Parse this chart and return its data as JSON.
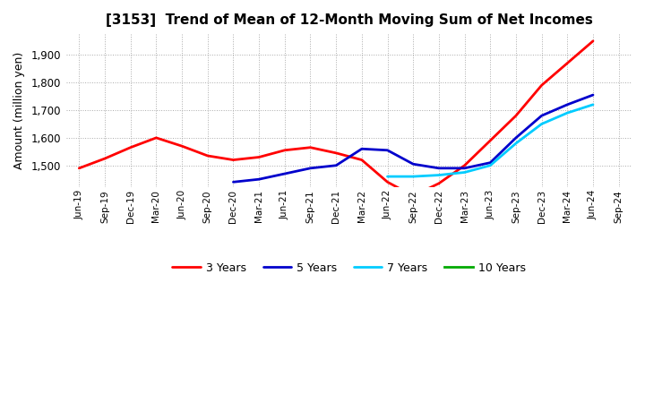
{
  "title": "[3153]  Trend of Mean of 12-Month Moving Sum of Net Incomes",
  "ylabel": "Amount (million yen)",
  "background_color": "#ffffff",
  "grid_color": "#aaaaaa",
  "x_labels": [
    "Jun-19",
    "Sep-19",
    "Dec-19",
    "Mar-20",
    "Jun-20",
    "Sep-20",
    "Dec-20",
    "Mar-21",
    "Jun-21",
    "Sep-21",
    "Dec-21",
    "Mar-22",
    "Jun-22",
    "Sep-22",
    "Dec-22",
    "Mar-23",
    "Jun-23",
    "Sep-23",
    "Dec-23",
    "Mar-24",
    "Jun-24",
    "Sep-24"
  ],
  "ylim": [
    1420,
    1975
  ],
  "yticks": [
    1500,
    1600,
    1700,
    1800,
    1900
  ],
  "series": {
    "3 Years": {
      "color": "#ff0000",
      "linewidth": 2.0,
      "values": [
        1490,
        1525,
        1565,
        1600,
        1570,
        1535,
        1520,
        1530,
        1555,
        1565,
        1545,
        1520,
        1440,
        1390,
        1435,
        1500,
        1590,
        1680,
        1790,
        1870,
        1950,
        null
      ]
    },
    "5 Years": {
      "color": "#0000cc",
      "linewidth": 2.0,
      "values": [
        null,
        null,
        null,
        null,
        null,
        null,
        1440,
        1450,
        1470,
        1490,
        1500,
        1560,
        1555,
        1505,
        1490,
        1490,
        1510,
        1600,
        1680,
        1720,
        1755,
        null
      ]
    },
    "7 Years": {
      "color": "#00ccff",
      "linewidth": 2.0,
      "values": [
        null,
        null,
        null,
        null,
        null,
        null,
        null,
        null,
        null,
        null,
        null,
        null,
        1460,
        1460,
        1465,
        1475,
        1500,
        1580,
        1650,
        1690,
        1720,
        null
      ]
    },
    "10 Years": {
      "color": "#00aa00",
      "linewidth": 2.0,
      "values": [
        null,
        null,
        null,
        null,
        null,
        null,
        null,
        null,
        null,
        null,
        null,
        null,
        null,
        null,
        null,
        null,
        null,
        null,
        null,
        null,
        null,
        null
      ]
    }
  },
  "legend_order": [
    "3 Years",
    "5 Years",
    "7 Years",
    "10 Years"
  ]
}
